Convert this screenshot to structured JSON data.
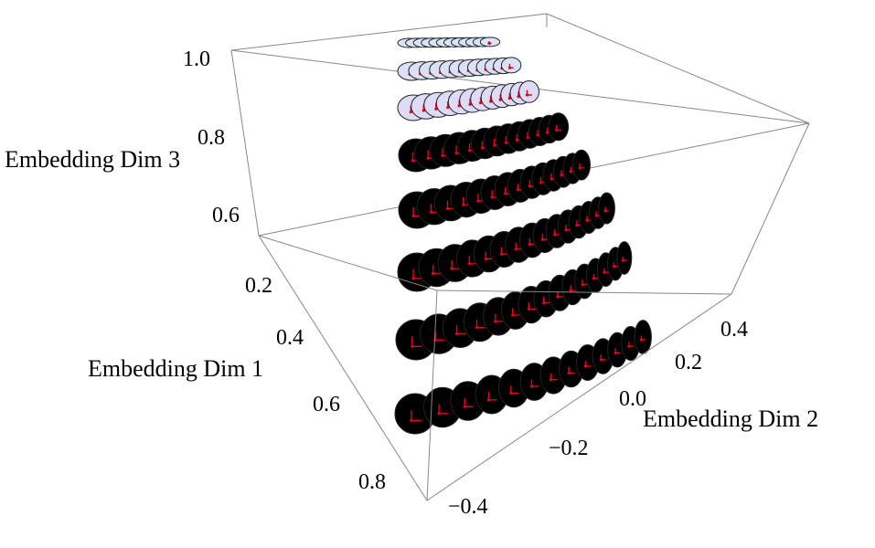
{
  "chart_data": {
    "type": "scatter",
    "projection": "3d-box",
    "title": "",
    "axes": {
      "x": {
        "label": "Embedding Dim 1",
        "ticks": [
          "0.2",
          "0.4",
          "0.6",
          "0.8"
        ]
      },
      "y": {
        "label": "Embedding Dim 2",
        "ticks": [
          "−0.4",
          "−0.2",
          "0.0",
          "0.2",
          "0.4"
        ]
      },
      "z": {
        "label": "Embedding Dim 3",
        "ticks": [
          "0.6",
          "0.8",
          "1.0"
        ]
      }
    },
    "marker": "disc with red orientation glyph",
    "colors": {
      "box_edge": "#888888",
      "disc_edge": "#222222",
      "glyph": "#e8001c",
      "color_low_dim3": "#f0b8e8",
      "color_high_dim3": "#d8e4f8",
      "color_high_dim2": "#f6cfb8"
    },
    "grid": false,
    "rows": [
      {
        "z": 1.0,
        "count": 12
      },
      {
        "z": 0.95,
        "count": 12
      },
      {
        "z": 0.9,
        "count": 12
      },
      {
        "z": 0.85,
        "count": 13
      },
      {
        "z": 0.78,
        "count": 14
      },
      {
        "z": 0.7,
        "count": 15
      },
      {
        "z": 0.6,
        "count": 15
      },
      {
        "z": 0.5,
        "count": 13
      }
    ]
  }
}
